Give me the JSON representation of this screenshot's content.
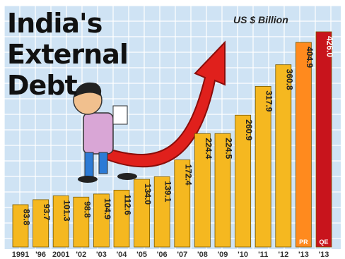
{
  "title": {
    "line1": "India's",
    "line2": "External",
    "line3": "Debt"
  },
  "unit_label": "US $ Billion",
  "colors": {
    "bar": "#f5b820",
    "bar_highlight": "#ff8a1e",
    "bar_last": "#c8141c",
    "arrow": "#e0201c",
    "grid_bg": "#cfe3f4",
    "grid_line": "#ffffff"
  },
  "chart_data": {
    "type": "bar",
    "title": "India's External Debt",
    "ylabel": "US $ Billion",
    "categories": [
      "1991",
      "'96",
      "2001",
      "'02",
      "'03",
      "'04",
      "'05",
      "'06",
      "'07",
      "'08",
      "'09",
      "'10",
      "'11",
      "'12",
      "'13",
      "'13"
    ],
    "values": [
      83.8,
      93.7,
      101.3,
      98.8,
      104.9,
      112.6,
      134.0,
      139.1,
      172.4,
      224.4,
      224.5,
      260.9,
      317.9,
      360.8,
      404.9,
      426.0
    ],
    "value_labels": [
      "83.8",
      "93.7",
      "101.3",
      "98.8",
      "104.9",
      "112.6",
      "134.0",
      "139.1",
      "172.4",
      "224.4",
      "224.5",
      "260.9",
      "317.9",
      "360.8",
      "404.9",
      "426.0"
    ],
    "bar_tags": [
      "",
      "",
      "",
      "",
      "",
      "",
      "",
      "",
      "",
      "",
      "",
      "",
      "",
      "",
      "PR",
      "QE"
    ],
    "ylim": [
      0,
      426
    ],
    "grid": true
  }
}
